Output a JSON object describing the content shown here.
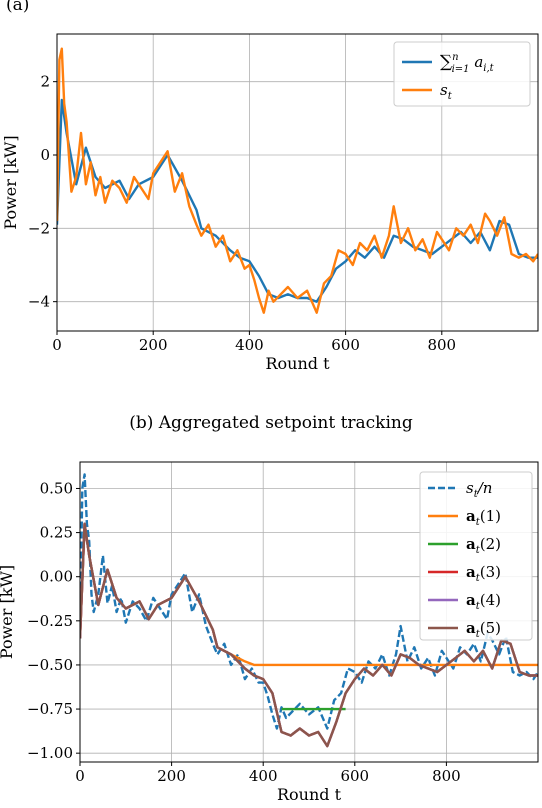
{
  "top_caption_fragment": "(a)",
  "caption_b": "(b) Aggregated setpoint tracking",
  "chart_data": [
    {
      "type": "line",
      "xlabel": "Round t",
      "ylabel": "Power [kW]",
      "xlim": [
        0,
        1000
      ],
      "ylim": [
        -4.8,
        3.3
      ],
      "xticks": [
        0,
        200,
        400,
        600,
        800
      ],
      "yticks": [
        2,
        0,
        -2,
        -4
      ],
      "grid": true,
      "legend_position": "top-right",
      "series": [
        {
          "name": "∑ a_{i,t} (i=1..n)",
          "color": "#1f77b4",
          "x": [
            0,
            10,
            20,
            40,
            60,
            80,
            100,
            130,
            150,
            170,
            200,
            230,
            260,
            290,
            300,
            330,
            360,
            380,
            400,
            420,
            440,
            460,
            480,
            500,
            520,
            540,
            560,
            580,
            600,
            620,
            640,
            660,
            680,
            700,
            720,
            740,
            760,
            780,
            800,
            820,
            840,
            860,
            880,
            900,
            920,
            940,
            960,
            980,
            1000
          ],
          "y": [
            -1.9,
            1.5,
            0.6,
            -0.8,
            0.2,
            -0.6,
            -0.9,
            -0.7,
            -1.2,
            -0.8,
            -0.6,
            0.0,
            -0.7,
            -1.5,
            -2.0,
            -2.2,
            -2.6,
            -2.8,
            -2.9,
            -3.3,
            -3.8,
            -3.9,
            -3.8,
            -3.9,
            -3.9,
            -4.0,
            -3.6,
            -3.1,
            -2.9,
            -2.6,
            -2.8,
            -2.5,
            -2.8,
            -2.2,
            -2.3,
            -2.5,
            -2.6,
            -2.7,
            -2.5,
            -2.3,
            -2.1,
            -2.4,
            -2.1,
            -2.6,
            -1.8,
            -1.9,
            -2.7,
            -2.8,
            -2.8
          ]
        },
        {
          "name": "s_t",
          "color": "#ff7f0e",
          "x": [
            0,
            5,
            10,
            15,
            20,
            30,
            40,
            50,
            60,
            70,
            80,
            90,
            100,
            115,
            130,
            145,
            160,
            175,
            190,
            200,
            215,
            230,
            245,
            260,
            275,
            290,
            300,
            315,
            330,
            345,
            360,
            375,
            390,
            400,
            410,
            420,
            430,
            440,
            450,
            465,
            480,
            500,
            520,
            540,
            555,
            570,
            585,
            600,
            615,
            630,
            645,
            660,
            675,
            690,
            700,
            715,
            730,
            745,
            760,
            775,
            790,
            800,
            815,
            830,
            845,
            860,
            875,
            890,
            900,
            915,
            930,
            945,
            960,
            975,
            990,
            1000
          ],
          "y": [
            -1.8,
            2.6,
            2.9,
            1.4,
            0.9,
            -1.0,
            -0.6,
            0.6,
            -0.8,
            -0.2,
            -1.1,
            -0.6,
            -1.3,
            -0.7,
            -0.9,
            -1.3,
            -0.6,
            -0.9,
            -1.2,
            -0.5,
            -0.2,
            0.1,
            -1.0,
            -0.5,
            -1.4,
            -1.9,
            -2.2,
            -1.9,
            -2.5,
            -2.2,
            -2.9,
            -2.6,
            -3.1,
            -3.0,
            -3.4,
            -3.9,
            -4.3,
            -3.7,
            -4.0,
            -3.8,
            -3.6,
            -3.9,
            -3.7,
            -4.3,
            -3.5,
            -3.3,
            -2.6,
            -2.7,
            -3.0,
            -2.4,
            -2.6,
            -2.2,
            -2.8,
            -2.2,
            -1.4,
            -2.4,
            -2.0,
            -2.6,
            -2.3,
            -2.8,
            -2.1,
            -2.3,
            -2.6,
            -2.0,
            -2.2,
            -1.9,
            -2.4,
            -1.6,
            -1.8,
            -2.2,
            -1.7,
            -2.7,
            -2.8,
            -2.7,
            -2.9,
            -2.7
          ]
        }
      ]
    },
    {
      "type": "line",
      "xlabel": "Round t",
      "ylabel": "Power [kW]",
      "xlim": [
        0,
        1000
      ],
      "ylim": [
        -1.05,
        0.65
      ],
      "xticks": [
        0,
        200,
        400,
        600,
        800
      ],
      "yticks": [
        0.5,
        0.25,
        0.0,
        -0.25,
        -0.5,
        -0.75,
        -1.0
      ],
      "ytick_labels": [
        "0.50",
        "0.25",
        "0.00",
        "−0.25",
        "−0.50",
        "−0.75",
        "−1.00"
      ],
      "grid": true,
      "legend_position": "top-right",
      "series": [
        {
          "name": "s_t/n",
          "color": "#1f77b4",
          "dashed": true,
          "x": [
            0,
            5,
            10,
            15,
            20,
            25,
            30,
            40,
            50,
            60,
            70,
            80,
            90,
            100,
            115,
            130,
            145,
            160,
            175,
            190,
            200,
            215,
            230,
            245,
            260,
            275,
            290,
            300,
            315,
            330,
            345,
            360,
            375,
            390,
            400,
            410,
            420,
            430,
            440,
            450,
            465,
            480,
            500,
            520,
            540,
            555,
            570,
            585,
            600,
            615,
            630,
            645,
            660,
            675,
            690,
            700,
            715,
            730,
            745,
            760,
            775,
            790,
            800,
            815,
            830,
            845,
            860,
            875,
            890,
            900,
            915,
            930,
            945,
            960,
            975,
            990,
            1000
          ],
          "y": [
            -0.35,
            0.5,
            0.58,
            0.3,
            0.2,
            -0.1,
            -0.2,
            -0.1,
            0.12,
            -0.15,
            -0.05,
            -0.2,
            -0.12,
            -0.26,
            -0.14,
            -0.18,
            -0.25,
            -0.12,
            -0.18,
            -0.24,
            -0.1,
            -0.04,
            0.02,
            -0.2,
            -0.1,
            -0.28,
            -0.38,
            -0.44,
            -0.38,
            -0.5,
            -0.44,
            -0.58,
            -0.52,
            -0.6,
            -0.6,
            -0.68,
            -0.78,
            -0.86,
            -0.74,
            -0.8,
            -0.76,
            -0.72,
            -0.78,
            -0.74,
            -0.86,
            -0.7,
            -0.66,
            -0.52,
            -0.54,
            -0.6,
            -0.48,
            -0.52,
            -0.44,
            -0.56,
            -0.44,
            -0.28,
            -0.48,
            -0.4,
            -0.52,
            -0.46,
            -0.56,
            -0.42,
            -0.46,
            -0.52,
            -0.4,
            -0.44,
            -0.38,
            -0.48,
            -0.32,
            -0.36,
            -0.44,
            -0.34,
            -0.54,
            -0.56,
            -0.54,
            -0.58,
            -0.54
          ]
        },
        {
          "name": "a_t(1)",
          "color": "#ff7f0e",
          "x": [
            0,
            10,
            20,
            40,
            60,
            80,
            100,
            130,
            150,
            170,
            200,
            230,
            260,
            290,
            300,
            330,
            360,
            380,
            400,
            410,
            420,
            1000
          ],
          "y": [
            -0.35,
            0.3,
            0.12,
            -0.16,
            0.04,
            -0.12,
            -0.18,
            -0.14,
            -0.24,
            -0.16,
            -0.12,
            0.0,
            -0.14,
            -0.3,
            -0.4,
            -0.44,
            -0.48,
            -0.5,
            -0.5,
            -0.5,
            -0.5,
            -0.5
          ]
        },
        {
          "name": "a_t(2)",
          "color": "#2ca02c",
          "x": [
            440,
            460,
            480,
            500,
            520,
            540,
            560,
            580
          ],
          "y": [
            -0.75,
            -0.75,
            -0.75,
            -0.75,
            -0.75,
            -0.75,
            -0.75,
            -0.75
          ]
        },
        {
          "name": "a_t(3)",
          "color": "#d62728",
          "x": [
            0,
            10,
            20,
            40,
            60,
            80,
            100,
            130,
            150,
            170,
            200,
            230,
            260,
            290,
            300,
            330,
            360,
            380,
            400,
            420,
            440,
            460,
            480,
            500,
            520,
            540,
            560,
            580,
            600,
            620,
            640,
            660,
            680,
            700,
            720,
            740,
            760,
            780,
            800,
            820,
            840,
            860,
            880,
            900,
            920,
            940,
            960,
            980,
            1000
          ],
          "y": [
            -0.35,
            0.3,
            0.12,
            -0.16,
            0.04,
            -0.12,
            -0.18,
            -0.14,
            -0.24,
            -0.16,
            -0.12,
            0.0,
            -0.14,
            -0.3,
            -0.4,
            -0.44,
            -0.52,
            -0.56,
            -0.58,
            -0.66,
            -0.88,
            -0.9,
            -0.86,
            -0.9,
            -0.88,
            -0.96,
            -0.82,
            -0.66,
            -0.58,
            -0.52,
            -0.56,
            -0.5,
            -0.56,
            -0.44,
            -0.46,
            -0.5,
            -0.52,
            -0.54,
            -0.5,
            -0.46,
            -0.42,
            -0.48,
            -0.42,
            -0.52,
            -0.36,
            -0.38,
            -0.54,
            -0.56,
            -0.56
          ]
        },
        {
          "name": "a_t(4)",
          "color": "#9467bd",
          "x": [
            0,
            10,
            20,
            40,
            60,
            80,
            100,
            130,
            150,
            170,
            200,
            230,
            260,
            290,
            300,
            330,
            360,
            380,
            400,
            420,
            440,
            460,
            480,
            500,
            520,
            540,
            560,
            580,
            600,
            620,
            640,
            660,
            680,
            700,
            720,
            740,
            760,
            780,
            800,
            820,
            840,
            860,
            880,
            900,
            920,
            940,
            960,
            980,
            1000
          ],
          "y": [
            -0.35,
            0.3,
            0.12,
            -0.16,
            0.04,
            -0.12,
            -0.18,
            -0.14,
            -0.24,
            -0.16,
            -0.12,
            0.0,
            -0.14,
            -0.3,
            -0.4,
            -0.44,
            -0.52,
            -0.56,
            -0.58,
            -0.66,
            -0.88,
            -0.9,
            -0.86,
            -0.9,
            -0.88,
            -0.96,
            -0.82,
            -0.66,
            -0.58,
            -0.52,
            -0.56,
            -0.5,
            -0.56,
            -0.44,
            -0.46,
            -0.5,
            -0.52,
            -0.54,
            -0.5,
            -0.46,
            -0.42,
            -0.48,
            -0.42,
            -0.52,
            -0.36,
            -0.38,
            -0.54,
            -0.56,
            -0.56
          ]
        },
        {
          "name": "a_t(5)",
          "color": "#8c564b",
          "x": [
            0,
            10,
            20,
            40,
            60,
            80,
            100,
            130,
            150,
            170,
            200,
            230,
            260,
            290,
            300,
            330,
            360,
            380,
            400,
            420,
            440,
            460,
            480,
            500,
            520,
            540,
            560,
            580,
            600,
            620,
            640,
            660,
            680,
            700,
            720,
            740,
            760,
            780,
            800,
            820,
            840,
            860,
            880,
            900,
            920,
            940,
            960,
            980,
            1000
          ],
          "y": [
            -0.35,
            0.3,
            0.12,
            -0.16,
            0.04,
            -0.12,
            -0.18,
            -0.14,
            -0.24,
            -0.16,
            -0.12,
            0.0,
            -0.14,
            -0.3,
            -0.4,
            -0.44,
            -0.52,
            -0.56,
            -0.58,
            -0.66,
            -0.88,
            -0.9,
            -0.86,
            -0.9,
            -0.88,
            -0.96,
            -0.82,
            -0.66,
            -0.58,
            -0.52,
            -0.56,
            -0.5,
            -0.56,
            -0.44,
            -0.46,
            -0.5,
            -0.52,
            -0.54,
            -0.5,
            -0.46,
            -0.42,
            -0.48,
            -0.42,
            -0.52,
            -0.36,
            -0.38,
            -0.54,
            -0.56,
            -0.56
          ]
        }
      ]
    }
  ]
}
